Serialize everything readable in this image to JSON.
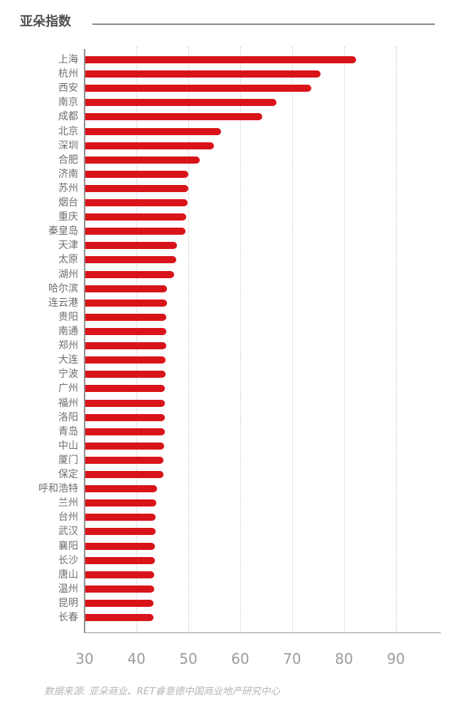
{
  "header": {
    "title": "亚朵指数"
  },
  "footer": {
    "source_note": "数据来源: 亚朵商业、RET睿意德中国商业地产研究中心"
  },
  "colors": {
    "background": "#ffffff",
    "bar": "#d8141a",
    "axis": "#919191",
    "grid": "#c6c6c6",
    "category_label": "#6e6e6e",
    "tick_label": "#9b9b9b",
    "title": "#4f4f4f",
    "rule": "#8a8a8a",
    "source": "#b5b5b5"
  },
  "chart_data": {
    "type": "bar",
    "orientation": "horizontal",
    "title": "亚朵指数",
    "categories": [
      "上海",
      "杭州",
      "西安",
      "南京",
      "成都",
      "北京",
      "深圳",
      "合肥",
      "济南",
      "苏州",
      "烟台",
      "重庆",
      "秦皇岛",
      "天津",
      "太原",
      "湖州",
      "哈尔滨",
      "连云港",
      "贵阳",
      "南通",
      "郑州",
      "大连",
      "宁波",
      "广州",
      "福州",
      "洛阳",
      "青岛",
      "中山",
      "厦门",
      "保定",
      "呼和浩特",
      "兰州",
      "台州",
      "武汉",
      "襄阳",
      "长沙",
      "唐山",
      "温州",
      "昆明",
      "长春"
    ],
    "values": [
      82.2,
      75.4,
      73.5,
      66.8,
      64.1,
      56.1,
      54.8,
      52.1,
      49.9,
      49.8,
      49.7,
      49.5,
      49.3,
      47.7,
      47.6,
      47.1,
      45.7,
      45.7,
      45.6,
      45.6,
      45.6,
      45.5,
      45.5,
      45.4,
      45.4,
      45.3,
      45.3,
      45.2,
      45.1,
      45.0,
      43.8,
      43.7,
      43.6,
      43.5,
      43.4,
      43.4,
      43.3,
      43.3,
      43.2,
      43.2
    ],
    "xlabel": "",
    "ylabel": "",
    "xlim": [
      30,
      98.6
    ],
    "xticks": [
      30,
      40,
      50,
      60,
      70,
      80,
      90
    ],
    "grid": "vertical-dotted",
    "legend": "none",
    "bar_color": "#d8141a",
    "source": "数据来源: 亚朵商业、RET睿意德中国商业地产研究中心"
  }
}
